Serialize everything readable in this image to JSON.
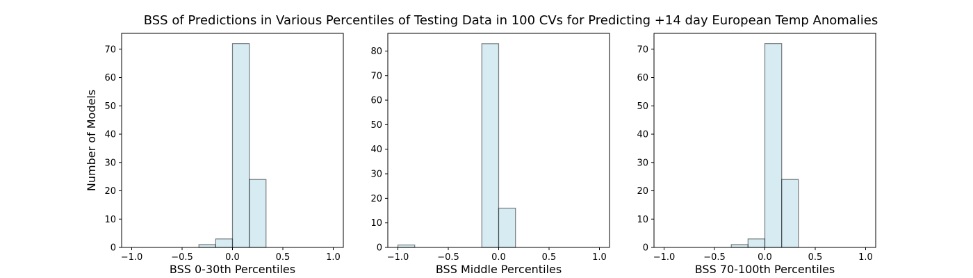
{
  "title": "BSS of Predictions in Various Percentiles of Testing Data in 100 CVs for Predicting +14 day European Temp Anomalies",
  "colors": {
    "bar_fill": "#add8e6",
    "bar_fill_opacity": 0.5,
    "bar_edge": "#000000",
    "bar_edge_opacity": 0.5
  },
  "chart_data": [
    {
      "type": "bar",
      "subtype": "histogram",
      "xlabel": "BSS 0-30th Percentiles",
      "ylabel": "Number of Models",
      "xlim": [
        -1.1,
        1.1
      ],
      "ylim": [
        0,
        75.6
      ],
      "xticks": [
        -1.0,
        -0.5,
        0.0,
        0.5,
        1.0
      ],
      "xtick_labels": [
        "−1.0",
        "−0.5",
        "0.0",
        "0.5",
        "1.0"
      ],
      "yticks": [
        0,
        10,
        20,
        30,
        40,
        50,
        60,
        70
      ],
      "bin_edges": [
        -0.333,
        -0.167,
        0.0,
        0.167,
        0.333
      ],
      "counts": [
        1,
        3,
        72,
        24
      ],
      "grid": false
    },
    {
      "type": "bar",
      "subtype": "histogram",
      "xlabel": "BSS Middle Percentiles",
      "ylabel": "",
      "xlim": [
        -1.1,
        1.1
      ],
      "ylim": [
        0,
        87.2
      ],
      "xticks": [
        -1.0,
        -0.5,
        0.0,
        0.5,
        1.0
      ],
      "xtick_labels": [
        "−1.0",
        "−0.5",
        "0.0",
        "0.5",
        "1.0"
      ],
      "yticks": [
        0,
        10,
        20,
        30,
        40,
        50,
        60,
        70,
        80
      ],
      "bin_edges": [
        -1.0,
        -0.833,
        -0.667,
        -0.5,
        -0.333,
        -0.167,
        0.0,
        0.167
      ],
      "counts": [
        1,
        0,
        0,
        0,
        0,
        83,
        16
      ],
      "grid": false
    },
    {
      "type": "bar",
      "subtype": "histogram",
      "xlabel": "BSS 70-100th Percentiles",
      "ylabel": "",
      "xlim": [
        -1.1,
        1.1
      ],
      "ylim": [
        0,
        75.6
      ],
      "xticks": [
        -1.0,
        -0.5,
        0.0,
        0.5,
        1.0
      ],
      "xtick_labels": [
        "−1.0",
        "−0.5",
        "0.0",
        "0.5",
        "1.0"
      ],
      "yticks": [
        0,
        10,
        20,
        30,
        40,
        50,
        60,
        70
      ],
      "bin_edges": [
        -0.333,
        -0.167,
        0.0,
        0.167,
        0.333
      ],
      "counts": [
        1,
        3,
        72,
        24
      ],
      "grid": false
    }
  ]
}
